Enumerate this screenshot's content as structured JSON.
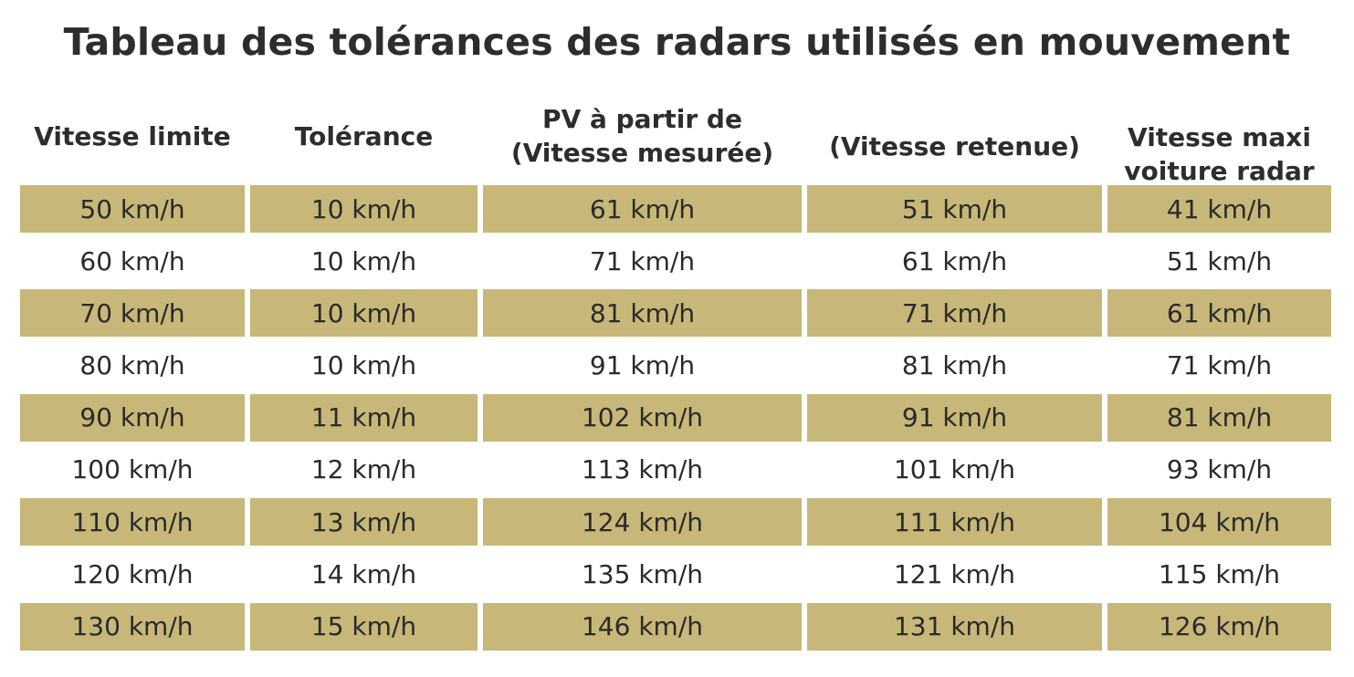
{
  "chart_data": {
    "type": "table",
    "title": "Tableau des tolérances des radars utilisés en mouvement",
    "columns": [
      [
        "Vitesse limite"
      ],
      [
        "Tolérance"
      ],
      [
        "PV à partir de",
        "(Vitesse mesurée)"
      ],
      [
        "(Vitesse retenue)"
      ],
      [
        "Vitesse maxi",
        "voiture radar"
      ]
    ],
    "rows": [
      [
        "50 km/h",
        "10 km/h",
        "61 km/h",
        "51 km/h",
        "41 km/h"
      ],
      [
        "60 km/h",
        "10 km/h",
        "71 km/h",
        "61 km/h",
        "51 km/h"
      ],
      [
        "70 km/h",
        "10 km/h",
        "81 km/h",
        "71 km/h",
        "61 km/h"
      ],
      [
        "80 km/h",
        "10 km/h",
        "91 km/h",
        "81 km/h",
        "71 km/h"
      ],
      [
        "90 km/h",
        "11 km/h",
        "102 km/h",
        "91 km/h",
        "81 km/h"
      ],
      [
        "100 km/h",
        "12 km/h",
        "113 km/h",
        "101 km/h",
        "93 km/h"
      ],
      [
        "110 km/h",
        "13 km/h",
        "124 km/h",
        "111 km/h",
        "104 km/h"
      ],
      [
        "120 km/h",
        "14 km/h",
        "135 km/h",
        "121 km/h",
        "115 km/h"
      ],
      [
        "130 km/h",
        "15 km/h",
        "146 km/h",
        "131 km/h",
        "126 km/h"
      ]
    ],
    "shaded_row_color": "#c7b778",
    "text_color": "#2d2d2d"
  }
}
